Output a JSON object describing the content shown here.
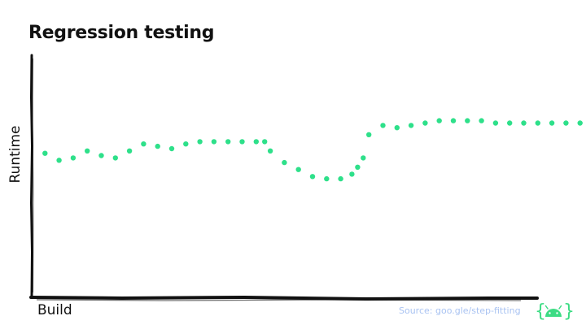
{
  "title": "Regression testing",
  "source": "Source: goo.gle/step-fitting",
  "logo_icon": "android-logo-icon",
  "colors": {
    "points": "#2ee08a",
    "axis": "#111111",
    "source": "#a9c3f2",
    "logo_green": "#3ddc84"
  },
  "chart_data": {
    "type": "scatter",
    "title": "Regression testing",
    "xlabel": "Build",
    "ylabel": "Runtime",
    "xlim": [
      0,
      40
    ],
    "ylim": [
      0,
      100
    ],
    "grid": false,
    "x": [
      1,
      2,
      3,
      4,
      5,
      6,
      7,
      8,
      9,
      10,
      11,
      12,
      13,
      14,
      15,
      16,
      16.6,
      17,
      18,
      19,
      20,
      21,
      22,
      22.8,
      23.2,
      23.6,
      24,
      25,
      26,
      27,
      28,
      29,
      30,
      31,
      32,
      33,
      34,
      35,
      36,
      37,
      38,
      39
    ],
    "y": [
      62,
      59,
      60,
      63,
      61,
      60,
      63,
      66,
      65,
      64,
      66,
      67,
      67,
      67,
      67,
      67,
      67,
      63,
      58,
      55,
      52,
      51,
      51,
      53,
      56,
      60,
      70,
      74,
      73,
      74,
      75,
      76,
      76,
      76,
      76,
      75,
      75,
      75,
      75,
      75,
      75,
      75
    ]
  }
}
